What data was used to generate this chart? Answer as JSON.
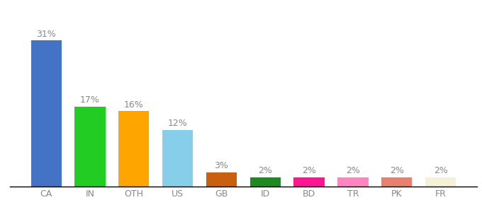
{
  "categories": [
    "CA",
    "IN",
    "OTH",
    "US",
    "GB",
    "ID",
    "BD",
    "TR",
    "PK",
    "FR"
  ],
  "values": [
    31,
    17,
    16,
    12,
    3,
    2,
    2,
    2,
    2,
    2
  ],
  "bar_colors": [
    "#4472C4",
    "#22CC22",
    "#FFA500",
    "#87CEEB",
    "#C86010",
    "#1E8B1E",
    "#FF1493",
    "#FF85C0",
    "#E88070",
    "#F5F0D8"
  ],
  "ylim": [
    0,
    36
  ],
  "bar_width": 0.7,
  "label_fontsize": 9,
  "tick_fontsize": 9,
  "label_color": "#888888",
  "tick_color": "#888888",
  "background_color": "#ffffff"
}
